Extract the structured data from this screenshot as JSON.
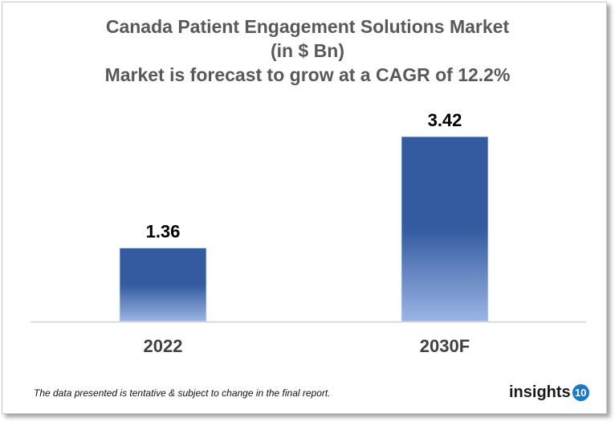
{
  "chart_data": {
    "type": "bar",
    "title": [
      "Canada Patient Engagement Solutions Market",
      "(in $ Bn)",
      "Market is forecast to grow at a CAGR of 12.2%"
    ],
    "categories": [
      "2022",
      "2030F"
    ],
    "values": [
      1.36,
      3.42
    ],
    "data_labels": [
      "1.36",
      "3.42"
    ],
    "xlabel": "",
    "ylabel": "",
    "ylim": [
      0,
      3.42
    ],
    "grid": false,
    "colors": {
      "bar_top": "#345b9f",
      "bar_bottom": "#9bb5e6",
      "title": "#595959"
    }
  },
  "footnote": "The data presented is tentative & subject to change in the final report.",
  "logo": {
    "text": "insights",
    "badge": "10"
  }
}
